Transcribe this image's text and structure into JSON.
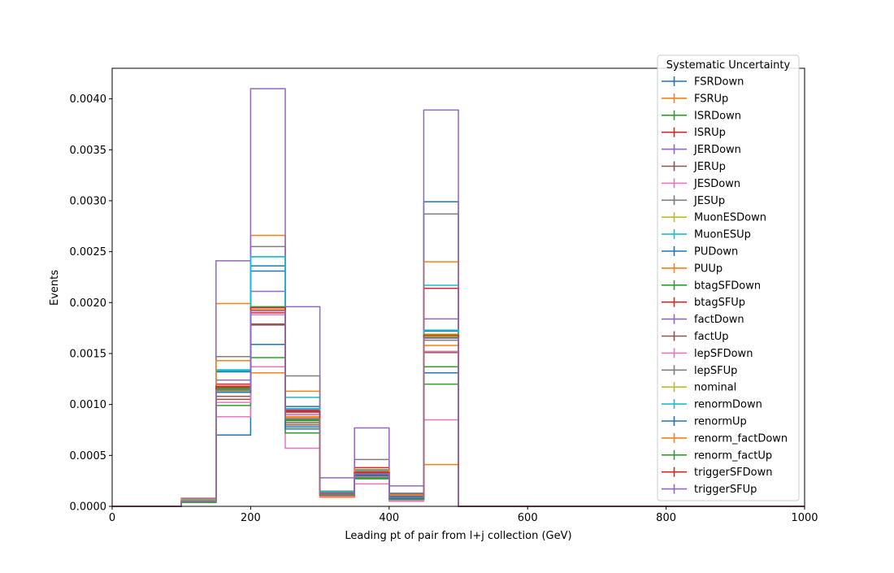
{
  "chart_data": {
    "type": "line",
    "title": "",
    "xlabel": "Leading pt of pair from l+j collection (GeV)",
    "ylabel": "Events",
    "xlim": [
      0,
      1000
    ],
    "ylim": [
      0,
      0.0043
    ],
    "xticks": [
      0,
      200,
      400,
      600,
      800,
      1000
    ],
    "xtick_labels": [
      "0",
      "200",
      "400",
      "600",
      "800",
      "1000"
    ],
    "yticks": [
      0,
      0.0005,
      0.001,
      0.0015,
      0.002,
      0.0025,
      0.003,
      0.0035,
      0.004
    ],
    "ytick_labels": [
      "0.0000",
      "0.0005",
      "0.0010",
      "0.0015",
      "0.0020",
      "0.0025",
      "0.0030",
      "0.0035",
      "0.0040"
    ],
    "bin_edges": [
      0,
      50,
      100,
      150,
      200,
      250,
      300,
      350,
      400,
      450,
      500,
      550,
      600,
      650,
      700,
      750,
      800,
      850,
      900,
      950,
      1000
    ],
    "grid": false,
    "legend": {
      "title": "Systematic Uncertainty",
      "placement": "top-right"
    },
    "series": [
      {
        "name": "FSRDown",
        "color": "#1f77b4",
        "values": [
          0,
          0,
          5e-05,
          0.0007,
          0.00231,
          0.00078,
          0.00012,
          0.00032,
          7e-05,
          0.00299,
          0,
          0,
          0,
          0,
          0,
          0,
          0,
          0,
          0,
          0
        ]
      },
      {
        "name": "FSRUp",
        "color": "#ff7f0e",
        "values": [
          0,
          0,
          7e-05,
          0.00143,
          0.00266,
          0.00113,
          0.00011,
          0.00035,
          0.00011,
          0.00041,
          0,
          0,
          0,
          0,
          0,
          0,
          0,
          0,
          0,
          0
        ]
      },
      {
        "name": "ISRDown",
        "color": "#2ca02c",
        "values": [
          0,
          0,
          4e-05,
          0.00115,
          0.00195,
          0.00085,
          0.00012,
          0.00033,
          8e-05,
          0.00166,
          0,
          0,
          0,
          0,
          0,
          0,
          0,
          0,
          0,
          0
        ]
      },
      {
        "name": "ISRUp",
        "color": "#d62728",
        "values": [
          0,
          0,
          5e-05,
          0.00117,
          0.0019,
          0.0009,
          0.00013,
          0.00034,
          9e-05,
          0.00167,
          0,
          0,
          0,
          0,
          0,
          0,
          0,
          0,
          0,
          0
        ]
      },
      {
        "name": "JERDown",
        "color": "#9467bd",
        "values": [
          0,
          0,
          6e-05,
          0.00124,
          0.00211,
          0.00095,
          0.00014,
          0.00036,
          0.0001,
          0.00184,
          0,
          0,
          0,
          0,
          0,
          0,
          0,
          0,
          0,
          0
        ]
      },
      {
        "name": "JERUp",
        "color": "#8c564b",
        "values": [
          0,
          0,
          5e-05,
          0.00108,
          0.00179,
          0.00082,
          0.00012,
          0.00031,
          9e-05,
          0.00152,
          0,
          0,
          0,
          0,
          0,
          0,
          0,
          0,
          0,
          0
        ]
      },
      {
        "name": "JESDown",
        "color": "#e377c2",
        "values": [
          0,
          0,
          4e-05,
          0.00088,
          0.00137,
          0.00057,
          0.0001,
          0.00022,
          5e-05,
          0.00085,
          0,
          0,
          0,
          0,
          0,
          0,
          0,
          0,
          0,
          0
        ]
      },
      {
        "name": "JESUp",
        "color": "#7f7f7f",
        "values": [
          0,
          0,
          7e-05,
          0.00147,
          0.00255,
          0.00128,
          0.00015,
          0.00046,
          0.00013,
          0.00287,
          0,
          0,
          0,
          0,
          0,
          0,
          0,
          0,
          0,
          0
        ]
      },
      {
        "name": "MuonESDown",
        "color": "#bcbd22",
        "values": [
          0,
          0,
          5e-05,
          0.00113,
          0.00193,
          0.00087,
          0.00012,
          0.00033,
          9e-05,
          0.00169,
          0,
          0,
          0,
          0,
          0,
          0,
          0,
          0,
          0,
          0
        ]
      },
      {
        "name": "MuonESUp",
        "color": "#17becf",
        "values": [
          0,
          0,
          6e-05,
          0.00133,
          0.00245,
          0.00107,
          0.00013,
          0.00035,
          0.0001,
          0.00217,
          0,
          0,
          0,
          0,
          0,
          0,
          0,
          0,
          0,
          0
        ]
      },
      {
        "name": "PUDown",
        "color": "#1f77b4",
        "values": [
          0,
          0,
          6e-05,
          0.00132,
          0.00236,
          0.00098,
          0.00013,
          0.00036,
          0.0001,
          0.00172,
          0,
          0,
          0,
          0,
          0,
          0,
          0,
          0,
          0,
          0
        ]
      },
      {
        "name": "PUUp",
        "color": "#ff7f0e",
        "values": [
          0,
          0,
          6e-05,
          0.00199,
          0.00131,
          0.00094,
          0.00012,
          0.00033,
          9e-05,
          0.0024,
          0,
          0,
          0,
          0,
          0,
          0,
          0,
          0,
          0,
          0
        ]
      },
      {
        "name": "btagSFDown",
        "color": "#2ca02c",
        "values": [
          0,
          0,
          4e-05,
          0.00099,
          0.00146,
          0.00072,
          0.00011,
          0.00027,
          7e-05,
          0.0012,
          0,
          0,
          0,
          0,
          0,
          0,
          0,
          0,
          0,
          0
        ]
      },
      {
        "name": "btagSFUp",
        "color": "#d62728",
        "values": [
          0,
          0,
          5e-05,
          0.0012,
          0.00192,
          0.00094,
          0.00013,
          0.00038,
          9e-05,
          0.00214,
          0,
          0,
          0,
          0,
          0,
          0,
          0,
          0,
          0,
          0
        ]
      },
      {
        "name": "factDown",
        "color": "#9467bd",
        "values": [
          0,
          0,
          8e-05,
          0.00241,
          0.0041,
          0.00196,
          0.00028,
          0.00077,
          0.0002,
          0.00389,
          0,
          0,
          0,
          0,
          0,
          0,
          0,
          0,
          0,
          0
        ]
      },
      {
        "name": "factUp",
        "color": "#8c564b",
        "values": [
          0,
          0,
          5e-05,
          0.00105,
          0.00178,
          0.0008,
          0.00011,
          0.0003,
          8e-05,
          0.00151,
          0,
          0,
          0,
          0,
          0,
          0,
          0,
          0,
          0,
          0
        ]
      },
      {
        "name": "lepSFDown",
        "color": "#e377c2",
        "values": [
          0,
          0,
          5e-05,
          0.00102,
          0.00188,
          0.0009,
          0.00011,
          0.00029,
          6e-05,
          0.00152,
          0,
          0,
          0,
          0,
          0,
          0,
          0,
          0,
          0,
          0
        ]
      },
      {
        "name": "lepSFUp",
        "color": "#7f7f7f",
        "values": [
          0,
          0,
          6e-05,
          0.00112,
          0.00193,
          0.00092,
          0.00012,
          0.00032,
          0.00012,
          0.00163,
          0,
          0,
          0,
          0,
          0,
          0,
          0,
          0,
          0,
          0
        ]
      },
      {
        "name": "nominal",
        "color": "#bcbd22",
        "values": [
          0,
          0,
          5e-05,
          0.00113,
          0.00193,
          0.00088,
          0.00012,
          0.00033,
          9e-05,
          0.00167,
          0,
          0,
          0,
          0,
          0,
          0,
          0,
          0,
          0,
          0
        ]
      },
      {
        "name": "renormDown",
        "color": "#17becf",
        "values": [
          0,
          0,
          6e-05,
          0.00134,
          0.00245,
          0.00096,
          0.00014,
          0.00033,
          9e-05,
          0.00173,
          0,
          0,
          0,
          0,
          0,
          0,
          0,
          0,
          0,
          0
        ]
      },
      {
        "name": "renormUp",
        "color": "#1f77b4",
        "values": [
          0,
          0,
          5e-05,
          0.00112,
          0.00159,
          0.00076,
          0.00011,
          0.0003,
          8e-05,
          0.00131,
          0,
          0,
          0,
          0,
          0,
          0,
          0,
          0,
          0,
          0
        ]
      },
      {
        "name": "renorm_factDown",
        "color": "#ff7f0e",
        "values": [
          0,
          0,
          7e-05,
          0.00143,
          0.00193,
          0.00088,
          9e-05,
          0.00036,
          0.00011,
          0.00158,
          0,
          0,
          0,
          0,
          0,
          0,
          0,
          0,
          0,
          0
        ]
      },
      {
        "name": "renorm_factUp",
        "color": "#2ca02c",
        "values": [
          0,
          0,
          4e-05,
          0.00116,
          0.00196,
          0.00084,
          0.00011,
          0.00028,
          7e-05,
          0.00137,
          0,
          0,
          0,
          0,
          0,
          0,
          0,
          0,
          0,
          0
        ]
      },
      {
        "name": "triggerSFDown",
        "color": "#d62728",
        "values": [
          0,
          0,
          5e-05,
          0.00118,
          0.00195,
          0.00093,
          0.00012,
          0.00033,
          9e-05,
          0.00168,
          0,
          0,
          0,
          0,
          0,
          0,
          0,
          0,
          0,
          0
        ]
      },
      {
        "name": "triggerSFUp",
        "color": "#9467bd",
        "values": [
          0,
          0,
          5e-05,
          0.00114,
          0.00192,
          0.00086,
          0.00012,
          0.00032,
          9e-05,
          0.00165,
          0,
          0,
          0,
          0,
          0,
          0,
          0,
          0,
          0,
          0
        ]
      }
    ]
  }
}
